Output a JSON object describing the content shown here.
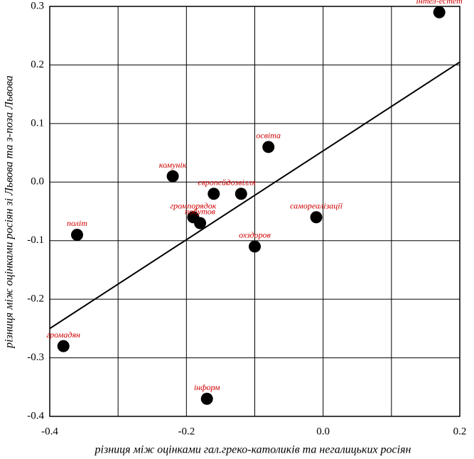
{
  "chart_data": {
    "type": "scatter",
    "x_label": "різниця між оцінками гал.греко-католиків та негалицьких росіян",
    "y_label": "різниця між оцінками росіян зі Львова та з-поза Львова",
    "x": [
      0.17,
      -0.08,
      -0.22,
      -0.16,
      -0.12,
      -0.19,
      -0.18,
      -0.01,
      -0.36,
      -0.1,
      -0.38,
      -0.17
    ],
    "series": [
      {
        "color": "#000000",
        "label_color": "#d00000",
        "values": [
          0.29,
          0.06,
          0.01,
          -0.02,
          -0.02,
          -0.06,
          -0.07,
          -0.06,
          -0.09,
          -0.11,
          -0.28,
          -0.37
        ],
        "point_labels": [
          "інтел-естет",
          "освіта",
          "комунік",
          "європейс",
          "дозвілля",
          "громпорядок",
          "побутов",
          "самореалізації",
          "політ",
          "охздоров",
          "громадян",
          "інформ"
        ]
      }
    ],
    "fit_line": {
      "x": [
        -0.4,
        0.2
      ],
      "y": [
        -0.25,
        0.205
      ]
    },
    "xlim": [
      -0.4,
      0.2
    ],
    "ylim": [
      -0.4,
      0.3
    ],
    "xticks": [
      -0.4,
      -0.2,
      {
        "value": 0,
        "label": "0.0"
      },
      0.2
    ],
    "xminor": [
      -0.3,
      -0.1,
      0.1
    ],
    "yticks": [
      -0.4,
      -0.3,
      -0.2,
      -0.1,
      {
        "value": 0,
        "label": "0.0"
      },
      0.1,
      0.2,
      0.3
    ],
    "grid": true
  }
}
